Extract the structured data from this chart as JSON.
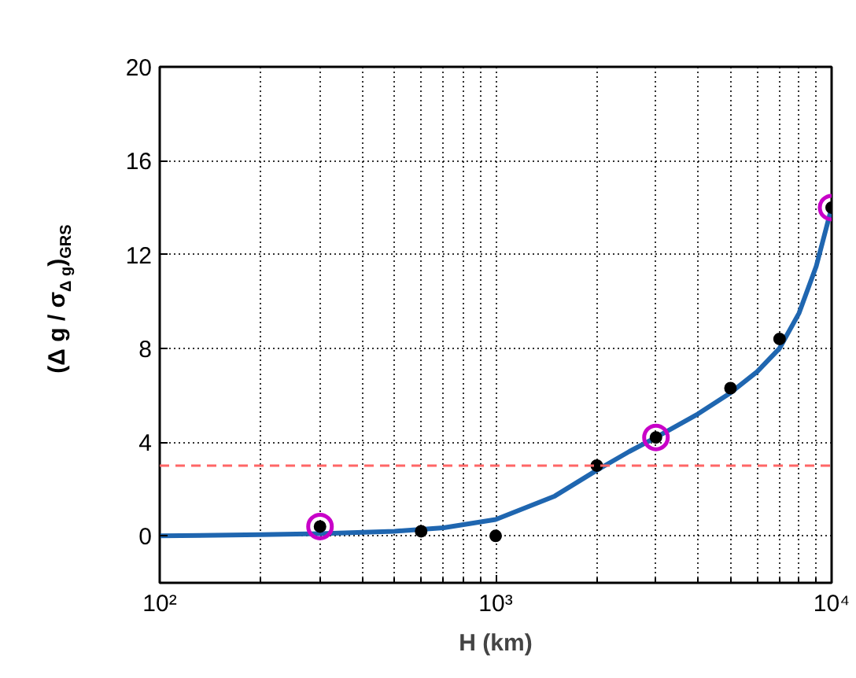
{
  "chart_data": {
    "type": "line",
    "xlabel": "H (km)",
    "ylabel": "(Δ g / σ$_{Δ g}$)$_{GRS}$",
    "log": "x",
    "xlim": [
      100,
      10000
    ],
    "ylim": [
      -2,
      20
    ],
    "xticks": [
      {
        "value": 100,
        "label": "10²"
      },
      {
        "value": 1000,
        "label": "10³"
      },
      {
        "value": 10000,
        "label": "10⁴"
      }
    ],
    "yticks": [
      0,
      4,
      8,
      12,
      16,
      20
    ],
    "grid": true,
    "series": [
      {
        "type": "line",
        "color": "#1f66b0",
        "x": [
          100,
          200,
          300,
          500,
          700,
          1000,
          1500,
          2000,
          2500,
          3000,
          4000,
          5000,
          6000,
          7000,
          8000,
          9000,
          10000
        ],
        "values": [
          0.0,
          0.05,
          0.1,
          0.2,
          0.35,
          0.7,
          1.7,
          2.8,
          3.6,
          4.2,
          5.2,
          6.1,
          7.0,
          8.0,
          9.5,
          11.5,
          14.0
        ]
      },
      {
        "type": "scatter",
        "marker": "circle",
        "color": "#c800c8",
        "x": [
          300,
          3000,
          10000
        ],
        "values": [
          0.4,
          4.2,
          14.0
        ]
      },
      {
        "type": "scatter",
        "marker": "circle",
        "color": "#000000",
        "x": [
          300,
          600,
          1000,
          2000,
          3000,
          5000,
          7000,
          10000
        ],
        "values": [
          0.4,
          0.2,
          0.0,
          3.0,
          4.2,
          6.3,
          8.4,
          14.0
        ]
      }
    ],
    "ref_lines": [
      {
        "axis": "y",
        "value": 3,
        "color": "#ff6666",
        "line_style": "dashed"
      }
    ]
  }
}
